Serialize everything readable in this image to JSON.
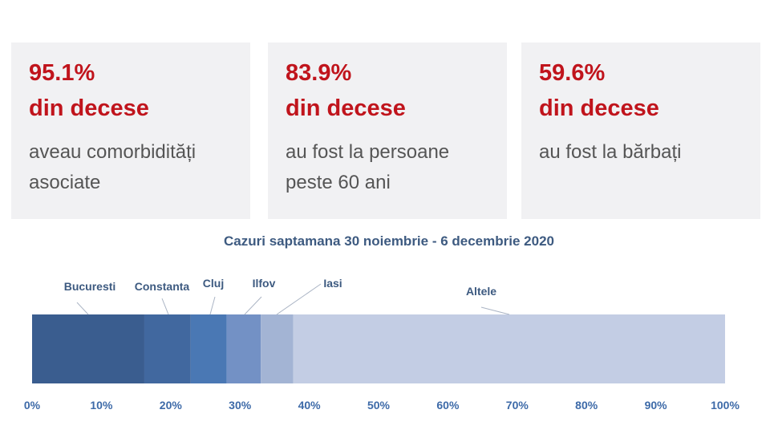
{
  "cards": [
    {
      "value": "95.1%",
      "title": "din decese",
      "line1": "aveau comorbidități",
      "line2": "asociate"
    },
    {
      "value": "83.9%",
      "title": "din decese",
      "line1": "au fost la persoane",
      "line2": "peste 60 ani"
    },
    {
      "value": "59.6%",
      "title": "din decese",
      "line1": "au fost la bărbați",
      "line2": ""
    }
  ],
  "chart_data": {
    "type": "bar",
    "orientation": "horizontal-stacked-100",
    "title": "Cazuri saptamana 30 noiembrie - 6 decembrie 2020",
    "categories": [
      "Bucuresti",
      "Constanta",
      "Cluj",
      "Ilfov",
      "Iasi",
      "Altele"
    ],
    "values": [
      16.2,
      6.7,
      5.2,
      4.9,
      4.7,
      62.3
    ],
    "colors": [
      "#3a5d8f",
      "#41689f",
      "#4a78b4",
      "#7391c5",
      "#a3b4d4",
      "#c3cde4"
    ],
    "xlim": [
      0,
      100
    ],
    "xticks": [
      "0%",
      "10%",
      "20%",
      "30%",
      "40%",
      "50%",
      "60%",
      "70%",
      "80%",
      "90%",
      "100%"
    ],
    "grid": false
  }
}
